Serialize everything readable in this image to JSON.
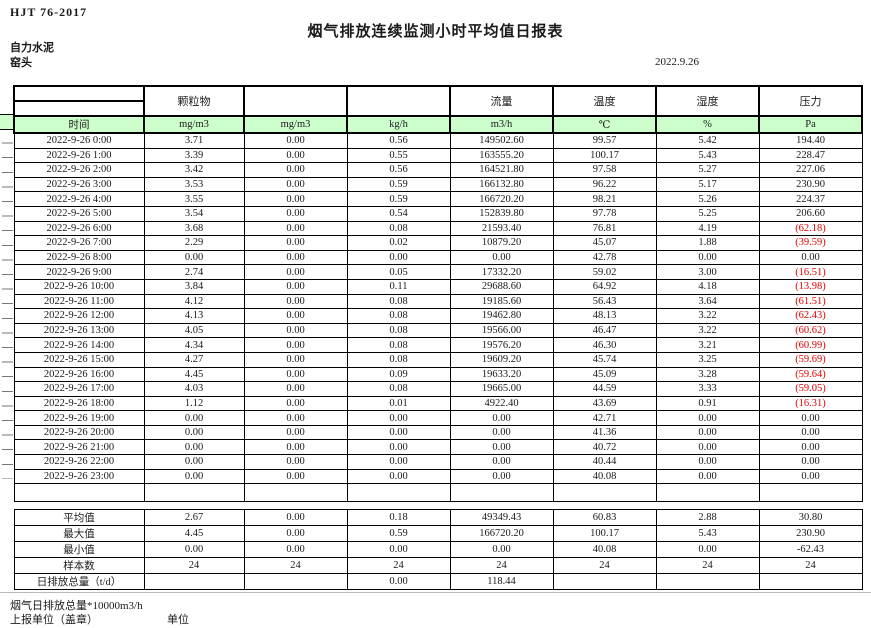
{
  "header": {
    "standard": "HJT  76-2017",
    "title": "烟气排放连续监测小时平均值日报表",
    "company": "自力水泥",
    "station": "窑头",
    "date": "2022.9.26"
  },
  "table": {
    "group_headers": [
      "",
      "颗粒物",
      "",
      "",
      "流量",
      "温度",
      "湿度",
      "压力"
    ],
    "units": [
      "时间",
      "mg/m3",
      "mg/m3",
      "kg/h",
      "m3/h",
      "℃",
      "%",
      "Pa"
    ],
    "rows": [
      [
        "2022-9-26 0:00",
        "3.71",
        "0.00",
        "0.56",
        "149502.60",
        "99.57",
        "5.42",
        "194.40"
      ],
      [
        "2022-9-26 1:00",
        "3.39",
        "0.00",
        "0.55",
        "163555.20",
        "100.17",
        "5.43",
        "228.47"
      ],
      [
        "2022-9-26 2:00",
        "3.42",
        "0.00",
        "0.56",
        "164521.80",
        "97.58",
        "5.27",
        "227.06"
      ],
      [
        "2022-9-26 3:00",
        "3.53",
        "0.00",
        "0.59",
        "166132.80",
        "96.22",
        "5.17",
        "230.90"
      ],
      [
        "2022-9-26 4:00",
        "3.55",
        "0.00",
        "0.59",
        "166720.20",
        "98.21",
        "5.26",
        "224.37"
      ],
      [
        "2022-9-26 5:00",
        "3.54",
        "0.00",
        "0.54",
        "152839.80",
        "97.78",
        "5.25",
        "206.60"
      ],
      [
        "2022-9-26 6:00",
        "3.68",
        "0.00",
        "0.08",
        "21593.40",
        "76.81",
        "4.19",
        "(62.18)"
      ],
      [
        "2022-9-26 7:00",
        "2.29",
        "0.00",
        "0.02",
        "10879.20",
        "45.07",
        "1.88",
        "(39.59)"
      ],
      [
        "2022-9-26 8:00",
        "0.00",
        "0.00",
        "0.00",
        "0.00",
        "42.78",
        "0.00",
        "0.00"
      ],
      [
        "2022-9-26 9:00",
        "2.74",
        "0.00",
        "0.05",
        "17332.20",
        "59.02",
        "3.00",
        "(16.51)"
      ],
      [
        "2022-9-26 10:00",
        "3.84",
        "0.00",
        "0.11",
        "29688.60",
        "64.92",
        "4.18",
        "(13.98)"
      ],
      [
        "2022-9-26 11:00",
        "4.12",
        "0.00",
        "0.08",
        "19185.60",
        "56.43",
        "3.64",
        "(61.51)"
      ],
      [
        "2022-9-26 12:00",
        "4.13",
        "0.00",
        "0.08",
        "19462.80",
        "48.13",
        "3.22",
        "(62.43)"
      ],
      [
        "2022-9-26 13:00",
        "4.05",
        "0.00",
        "0.08",
        "19566.00",
        "46.47",
        "3.22",
        "(60.62)"
      ],
      [
        "2022-9-26 14:00",
        "4.34",
        "0.00",
        "0.08",
        "19576.20",
        "46.30",
        "3.21",
        "(60.99)"
      ],
      [
        "2022-9-26 15:00",
        "4.27",
        "0.00",
        "0.08",
        "19609.20",
        "45.74",
        "3.25",
        "(59.69)"
      ],
      [
        "2022-9-26 16:00",
        "4.45",
        "0.00",
        "0.09",
        "19633.20",
        "45.09",
        "3.28",
        "(59.64)"
      ],
      [
        "2022-9-26 17:00",
        "4.03",
        "0.00",
        "0.08",
        "19665.00",
        "44.59",
        "3.33",
        "(59.05)"
      ],
      [
        "2022-9-26 18:00",
        "1.12",
        "0.00",
        "0.01",
        "4922.40",
        "43.69",
        "0.91",
        "(16.31)"
      ],
      [
        "2022-9-26 19:00",
        "0.00",
        "0.00",
        "0.00",
        "0.00",
        "42.71",
        "0.00",
        "0.00"
      ],
      [
        "2022-9-26 20:00",
        "0.00",
        "0.00",
        "0.00",
        "0.00",
        "41.36",
        "0.00",
        "0.00"
      ],
      [
        "2022-9-26 21:00",
        "0.00",
        "0.00",
        "0.00",
        "0.00",
        "40.72",
        "0.00",
        "0.00"
      ],
      [
        "2022-9-26 22:00",
        "0.00",
        "0.00",
        "0.00",
        "0.00",
        "40.44",
        "0.00",
        "0.00"
      ],
      [
        "2022-9-26 23:00",
        "0.00",
        "0.00",
        "0.00",
        "0.00",
        "40.08",
        "0.00",
        "0.00"
      ]
    ],
    "summary": [
      {
        "label": "平均值",
        "values": [
          "2.67",
          "0.00",
          "0.18",
          "49349.43",
          "60.83",
          "2.88",
          "30.80"
        ]
      },
      {
        "label": "最大值",
        "values": [
          "4.45",
          "0.00",
          "0.59",
          "166720.20",
          "100.17",
          "5.43",
          "230.90"
        ]
      },
      {
        "label": "最小值",
        "values": [
          "0.00",
          "0.00",
          "0.00",
          "0.00",
          "40.08",
          "0.00",
          "-62.43"
        ]
      },
      {
        "label": "样本数",
        "values": [
          "24",
          "24",
          "24",
          "24",
          "24",
          "24",
          "24"
        ]
      },
      {
        "label": "日排放总量（t/d）",
        "values": [
          "",
          "",
          "0.00",
          "118.44",
          "",
          "",
          ""
        ]
      }
    ]
  },
  "footer": {
    "note": "烟气日排放总量*10000m3/h",
    "report_unit": "上报单位（盖章）",
    "unit_label": "单位"
  },
  "colors": {
    "header_fill": "#CCFFCC",
    "negative_red": "#E60000",
    "border": "#000000"
  }
}
